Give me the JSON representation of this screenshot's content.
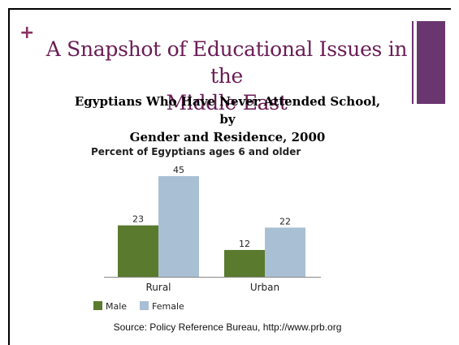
{
  "slide": {
    "plus": "+",
    "title_line1": "A Snapshot of Educational Issues in the",
    "title_line2": "Middle East",
    "subtitle_line1": "Egyptians Who Have Never Attended School, by",
    "subtitle_line2": "Gender and Residence, 2000",
    "source": "Source: Policy Reference Bureau, http://www.prb.org",
    "colors": {
      "title": "#6a1c55",
      "accent": "#6a3670"
    }
  },
  "chart_data": {
    "type": "bar",
    "title": "Percent of Egyptians ages 6 and older",
    "categories": [
      "Rural",
      "Urban"
    ],
    "series": [
      {
        "name": "Male",
        "values": [
          23,
          12
        ],
        "color": "#5a7a2e"
      },
      {
        "name": "Female",
        "values": [
          45,
          22
        ],
        "color": "#a9c0d4"
      }
    ],
    "ylim": [
      0,
      45
    ],
    "xlabel": "",
    "ylabel": "",
    "legend": "bottom-left",
    "grid": false
  }
}
